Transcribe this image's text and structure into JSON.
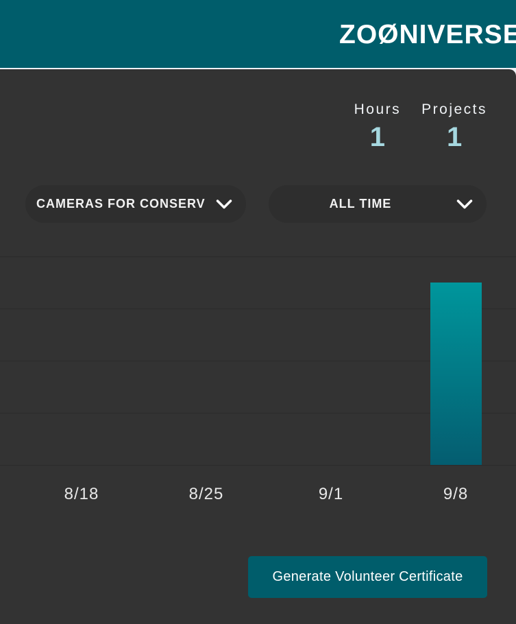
{
  "header": {
    "logo": "ZOØNIVERSE"
  },
  "stats": {
    "items": [
      {
        "label": "Hours",
        "value": "1"
      },
      {
        "label": "Projects",
        "value": "1"
      }
    ]
  },
  "filters": {
    "project_dropdown": {
      "label": "CAMERAS FOR CONSERV"
    },
    "time_dropdown": {
      "label": "ALL TIME"
    }
  },
  "chart_data": {
    "type": "bar",
    "categories": [
      "8/18",
      "8/25",
      "9/1",
      "9/8"
    ],
    "values": [
      0,
      0,
      0,
      3.5
    ],
    "title": "",
    "xlabel": "",
    "ylabel": "",
    "ylim": [
      0,
      4
    ],
    "grid": true,
    "legend": false,
    "bar_color_top": "#00969c",
    "bar_color_bottom": "#045d70"
  },
  "actions": {
    "generate_certificate_label": "Generate Volunteer Certificate"
  },
  "colors": {
    "brand_teal": "#005d6b",
    "panel_background": "#333333",
    "stat_value_accent": "#a6d8e0",
    "page_background": "#eff2f5"
  }
}
